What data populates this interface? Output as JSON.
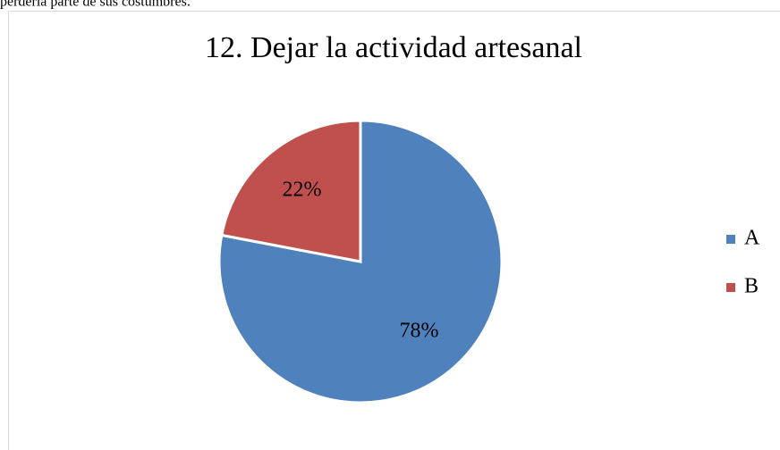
{
  "text": "perdería parte de sus costumbres.",
  "chart_data": {
    "type": "pie",
    "title": "12. Dejar la actividad artesanal",
    "categories": [
      "A",
      "B"
    ],
    "values": [
      78,
      22
    ],
    "value_labels": [
      "78%",
      "22%"
    ],
    "colors": [
      "#4f81bd",
      "#c0504d"
    ],
    "legend": "right"
  }
}
